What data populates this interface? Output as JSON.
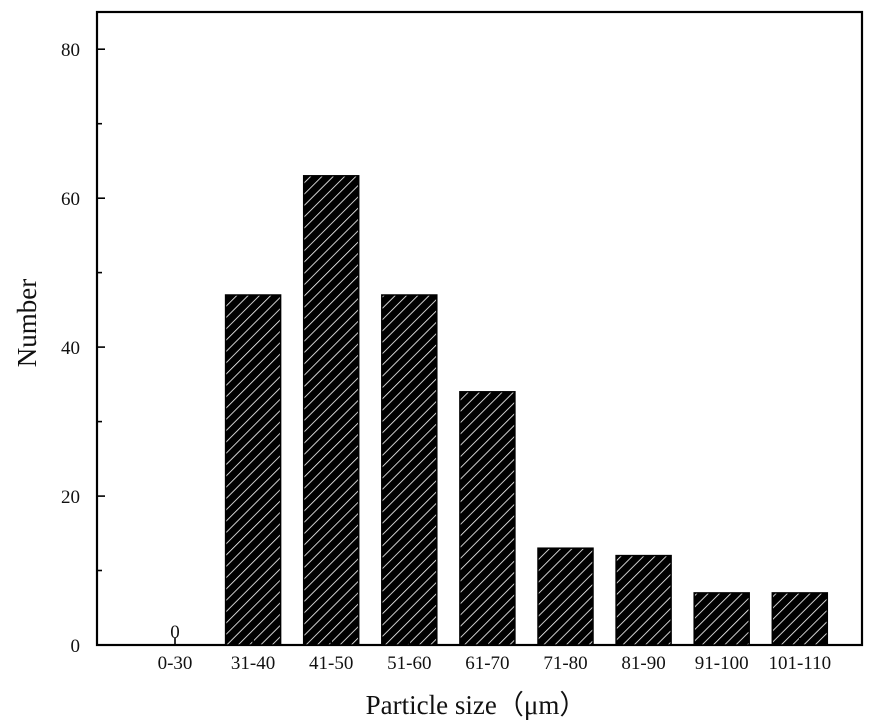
{
  "chart_data": {
    "type": "bar",
    "categories": [
      "0-30",
      "31-40",
      "41-50",
      "51-60",
      "61-70",
      "71-80",
      "81-90",
      "91-100",
      "101-110"
    ],
    "values": [
      0,
      47,
      63,
      47,
      34,
      13,
      12,
      7,
      7
    ],
    "data_labels": [
      "0",
      "",
      "",
      "",
      "",
      "",
      "",
      "",
      ""
    ],
    "xlabel": "Particle size（μm）",
    "ylabel": "Number",
    "ylim": [
      0,
      85
    ],
    "yticks": [
      "0",
      "20",
      "40",
      "60",
      "80"
    ],
    "bar_fill": "hatched",
    "bar_color": "#000000",
    "hatch_color": "#ffffff",
    "grid": false
  }
}
